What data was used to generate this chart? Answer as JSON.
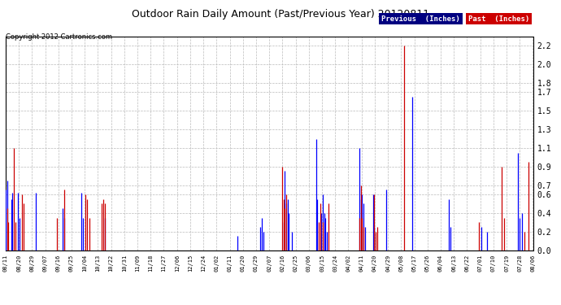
{
  "title": "Outdoor Rain Daily Amount (Past/Previous Year) 20120811",
  "copyright": "Copyright 2012 Cartronics.com",
  "ylim": [
    0.0,
    2.3
  ],
  "yticks": [
    0.0,
    0.2,
    0.4,
    0.6,
    0.7,
    0.9,
    1.1,
    1.3,
    1.5,
    1.7,
    1.8,
    2.0,
    2.2
  ],
  "legend_labels": [
    "Previous  (Inches)",
    "Past  (Inches)"
  ],
  "legend_colors_bg": [
    "#000080",
    "#cc0000"
  ],
  "legend_text_color": "#ffffff",
  "bg_color": "#ffffff",
  "grid_color": "#bbbbbb",
  "line_color_prev": "#0000ff",
  "line_color_past": "#cc0000",
  "line_color_black": "#000000",
  "tick_labels": [
    "08/11",
    "08/20",
    "08/29",
    "09/07",
    "09/16",
    "09/25",
    "10/04",
    "10/13",
    "10/22",
    "10/31",
    "11/09",
    "11/18",
    "11/27",
    "12/06",
    "12/15",
    "12/24",
    "01/02",
    "01/11",
    "01/20",
    "01/29",
    "02/07",
    "02/16",
    "02/25",
    "03/06",
    "03/15",
    "03/24",
    "04/02",
    "04/11",
    "04/20",
    "04/29",
    "05/08",
    "05/17",
    "05/26",
    "06/04",
    "06/13",
    "06/22",
    "07/01",
    "07/10",
    "07/19",
    "07/28",
    "08/06"
  ],
  "previous_data": [
    0.65,
    0.75,
    0.0,
    0.0,
    0.55,
    0.62,
    0.0,
    0.0,
    0.0,
    0.62,
    0.35,
    0.0,
    0.0,
    0.0,
    0.0,
    0.0,
    0.0,
    0.0,
    0.0,
    0.0,
    0.0,
    0.0,
    0.62,
    0.0,
    0.0,
    0.0,
    0.0,
    0.0,
    0.0,
    0.0,
    0.0,
    0.0,
    0.0,
    0.0,
    0.0,
    0.0,
    0.0,
    0.0,
    0.0,
    0.0,
    0.0,
    0.0,
    0.45,
    0.35,
    0.0,
    0.0,
    0.0,
    0.0,
    0.0,
    0.0,
    0.0,
    0.0,
    0.0,
    0.0,
    0.0,
    0.0,
    0.62,
    0.35,
    0.0,
    0.0,
    0.0,
    0.0,
    0.0,
    0.0,
    0.0,
    0.0,
    0.0,
    0.0,
    0.0,
    0.0,
    0.0,
    0.0,
    0.0,
    0.35,
    0.0,
    0.0,
    0.0,
    0.0,
    0.0,
    0.0,
    0.0,
    0.0,
    0.0,
    0.0,
    0.0,
    0.0,
    0.0,
    0.0,
    0.0,
    0.0,
    0.0,
    0.0,
    0.0,
    0.0,
    0.0,
    0.0,
    0.0,
    0.0,
    0.0,
    0.0,
    0.0,
    0.0,
    0.0,
    0.0,
    0.0,
    0.0,
    0.0,
    0.0,
    0.0,
    0.0,
    0.0,
    0.0,
    0.0,
    0.0,
    0.0,
    0.0,
    0.0,
    0.0,
    0.0,
    0.0,
    0.0,
    0.0,
    0.0,
    0.0,
    0.0,
    0.0,
    0.0,
    0.0,
    0.0,
    0.0,
    0.0,
    0.0,
    0.0,
    0.0,
    0.0,
    0.0,
    0.0,
    0.0,
    0.0,
    0.0,
    0.0,
    0.0,
    0.0,
    0.0,
    0.0,
    0.0,
    0.0,
    0.0,
    0.0,
    0.0,
    0.0,
    0.0,
    0.0,
    0.0,
    0.0,
    0.0,
    0.0,
    0.0,
    0.0,
    0.0,
    0.0,
    0.0,
    0.0,
    0.0,
    0.0,
    0.0,
    0.0,
    0.0,
    0.0,
    0.0,
    0.0,
    0.15,
    0.0,
    0.0,
    0.0,
    0.0,
    0.0,
    0.0,
    0.0,
    0.0,
    0.0,
    0.0,
    0.0,
    0.0,
    0.0,
    0.0,
    0.0,
    0.0,
    0.25,
    0.35,
    0.2,
    0.0,
    0.0,
    0.0,
    0.0,
    0.0,
    0.0,
    0.0,
    0.0,
    0.0,
    0.0,
    0.0,
    0.0,
    0.0,
    0.0,
    0.3,
    0.85,
    0.5,
    0.55,
    0.4,
    0.0,
    0.2,
    0.0,
    0.0,
    0.0,
    0.0,
    0.0,
    0.0,
    0.0,
    0.0,
    0.0,
    0.0,
    0.0,
    0.0,
    0.0,
    0.0,
    0.0,
    0.0,
    0.0,
    1.2,
    0.55,
    0.0,
    0.0,
    0.4,
    0.6,
    0.4,
    0.35,
    0.2,
    0.0,
    0.0,
    0.0,
    0.0,
    0.0,
    0.0,
    0.0,
    0.0,
    0.0,
    0.0,
    0.0,
    0.0,
    0.0,
    0.0,
    0.0,
    0.0,
    0.0,
    0.0,
    0.0,
    0.0,
    0.0,
    0.0,
    0.0,
    1.1,
    0.55,
    0.6,
    0.5,
    0.25,
    0.0,
    0.0,
    0.0,
    0.0,
    0.0,
    0.6,
    0.25,
    0.0,
    0.0,
    0.0,
    0.0,
    0.0,
    0.0,
    0.0,
    0.0,
    0.65,
    0.0,
    0.0,
    0.0,
    0.0,
    0.0,
    0.0,
    0.0,
    0.0,
    0.0,
    0.0,
    0.0,
    0.0,
    0.0,
    0.0,
    0.0,
    0.0,
    0.0,
    0.0,
    1.65,
    0.0,
    0.0,
    0.0,
    0.0,
    0.0,
    0.0,
    0.0,
    0.0,
    0.0,
    0.0,
    0.0,
    0.0,
    0.0,
    0.0,
    0.0,
    0.0,
    0.0,
    0.0,
    0.0,
    0.0,
    0.0,
    0.0,
    0.0,
    0.0,
    0.0,
    0.0,
    0.55,
    0.25,
    0.0,
    0.0,
    0.0,
    0.0,
    0.0,
    0.0,
    0.0,
    0.0,
    0.0,
    0.0,
    0.0,
    0.0,
    0.0,
    0.0,
    0.0,
    0.0,
    0.0,
    0.0,
    0.0,
    0.0,
    0.0,
    0.0,
    0.25,
    0.0,
    0.0,
    0.0,
    0.2,
    0.0,
    0.0,
    0.0,
    0.0,
    0.0,
    0.0,
    0.0,
    0.0,
    0.0,
    0.0,
    0.0,
    0.0,
    0.0,
    0.0,
    0.0,
    0.0,
    0.0,
    0.0,
    0.0,
    0.0,
    0.0,
    0.0,
    1.05,
    0.35,
    0.0,
    0.4,
    0.0,
    0.0,
    0.0
  ],
  "past_data": [
    0.0,
    0.45,
    0.3,
    0.0,
    0.0,
    0.0,
    1.1,
    0.3,
    0.0,
    0.0,
    0.0,
    0.0,
    0.6,
    0.5,
    0.0,
    0.0,
    0.0,
    0.0,
    0.0,
    0.0,
    0.0,
    0.0,
    0.0,
    0.0,
    0.0,
    0.0,
    0.0,
    0.0,
    0.0,
    0.0,
    0.0,
    0.0,
    0.0,
    0.0,
    0.0,
    0.0,
    0.0,
    0.0,
    0.35,
    0.0,
    0.0,
    0.0,
    0.0,
    0.65,
    0.0,
    0.0,
    0.0,
    0.0,
    0.0,
    0.0,
    0.0,
    0.0,
    0.0,
    0.0,
    0.0,
    0.0,
    0.0,
    0.0,
    0.0,
    0.6,
    0.55,
    0.0,
    0.35,
    0.0,
    0.0,
    0.0,
    0.0,
    0.0,
    0.0,
    0.0,
    0.0,
    0.5,
    0.55,
    0.5,
    0.0,
    0.0,
    0.0,
    0.0,
    0.0,
    0.0,
    0.0,
    0.0,
    0.0,
    0.0,
    0.0,
    0.0,
    0.0,
    0.0,
    0.0,
    0.0,
    0.0,
    0.0,
    0.0,
    0.0,
    0.0,
    0.0,
    0.0,
    0.0,
    0.0,
    0.0,
    0.0,
    0.0,
    0.0,
    0.0,
    0.0,
    0.0,
    0.0,
    0.0,
    0.0,
    0.0,
    0.0,
    0.0,
    0.0,
    0.0,
    0.0,
    0.0,
    0.0,
    0.0,
    0.0,
    0.0,
    0.0,
    0.0,
    0.0,
    0.0,
    0.0,
    0.0,
    0.0,
    0.0,
    0.0,
    0.0,
    0.0,
    0.0,
    0.0,
    0.0,
    0.0,
    0.0,
    0.0,
    0.0,
    0.0,
    0.0,
    0.0,
    0.0,
    0.0,
    0.0,
    0.0,
    0.0,
    0.0,
    0.0,
    0.0,
    0.0,
    0.0,
    0.0,
    0.0,
    0.0,
    0.0,
    0.0,
    0.0,
    0.0,
    0.0,
    0.0,
    0.0,
    0.0,
    0.0,
    0.0,
    0.0,
    0.0,
    0.0,
    0.0,
    0.0,
    0.0,
    0.0,
    0.0,
    0.0,
    0.0,
    0.0,
    0.0,
    0.0,
    0.0,
    0.0,
    0.0,
    0.0,
    0.0,
    0.0,
    0.0,
    0.0,
    0.0,
    0.0,
    0.0,
    0.0,
    0.0,
    0.0,
    0.0,
    0.0,
    0.0,
    0.0,
    0.0,
    0.0,
    0.0,
    0.0,
    0.0,
    0.0,
    0.0,
    0.0,
    0.0,
    0.9,
    0.55,
    0.45,
    0.6,
    0.0,
    0.0,
    0.0,
    0.0,
    0.0,
    0.0,
    0.0,
    0.0,
    0.0,
    0.0,
    0.0,
    0.0,
    0.0,
    0.0,
    0.0,
    0.0,
    0.0,
    0.0,
    0.0,
    0.0,
    0.0,
    0.0,
    0.0,
    0.3,
    0.5,
    0.0,
    0.3,
    0.0,
    0.0,
    0.0,
    0.5,
    0.0,
    0.0,
    0.0,
    0.0,
    0.0,
    0.0,
    0.0,
    0.0,
    0.0,
    0.0,
    0.0,
    0.0,
    0.0,
    0.0,
    0.0,
    0.0,
    0.0,
    0.0,
    0.0,
    0.0,
    0.0,
    0.0,
    0.35,
    0.7,
    0.35,
    0.25,
    0.0,
    0.0,
    0.0,
    0.0,
    0.0,
    0.0,
    0.0,
    0.6,
    0.2,
    0.25,
    0.0,
    0.0,
    0.0,
    0.0,
    0.0,
    0.0,
    0.0,
    0.0,
    0.0,
    0.0,
    0.0,
    0.0,
    0.0,
    0.0,
    0.0,
    0.0,
    0.0,
    0.0,
    0.0,
    2.2,
    0.0,
    0.0,
    0.0,
    0.0,
    0.0,
    0.0,
    0.0,
    0.0,
    0.0,
    0.0,
    0.0,
    0.0,
    0.0,
    0.0,
    0.0,
    0.0,
    0.0,
    0.0,
    0.0,
    0.0,
    0.0,
    0.0,
    0.0,
    0.0,
    0.0,
    0.0,
    0.0,
    0.0,
    0.0,
    0.0,
    0.0,
    0.0,
    0.0,
    0.0,
    0.0,
    0.0,
    0.0,
    0.0,
    0.0,
    0.0,
    0.0,
    0.0,
    0.0,
    0.0,
    0.0,
    0.0,
    0.0,
    0.0,
    0.0,
    0.0,
    0.0,
    0.0,
    0.0,
    0.0,
    0.3,
    0.0,
    0.0,
    0.0,
    0.0,
    0.0,
    0.0,
    0.0,
    0.0,
    0.0,
    0.0,
    0.0,
    0.0,
    0.0,
    0.0,
    0.0,
    0.0,
    0.9,
    0.0,
    0.35,
    0.0,
    0.0,
    0.0,
    0.0,
    0.0,
    0.0,
    0.0,
    0.0,
    0.0,
    0.0,
    0.0,
    0.0,
    0.0,
    0.0,
    0.2,
    0.0,
    0.0,
    0.95,
    0.0,
    0.0,
    0.0
  ]
}
